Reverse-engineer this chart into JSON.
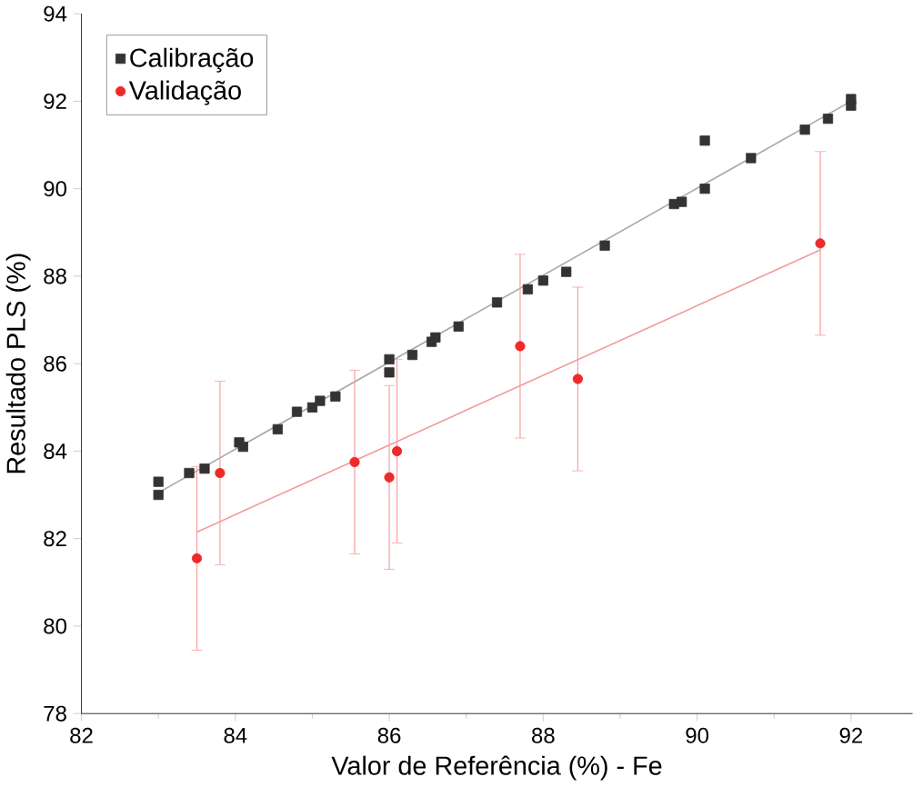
{
  "chart_data": {
    "type": "scatter",
    "xlabel": "Valor de Referência (%) - Fe",
    "ylabel": "Resultado PLS (%)",
    "xlim": [
      82,
      92.8
    ],
    "ylim": [
      78,
      94
    ],
    "xticks": [
      82,
      84,
      86,
      88,
      90,
      92
    ],
    "yticks": [
      78,
      80,
      82,
      84,
      86,
      88,
      90,
      92,
      94
    ],
    "grid": false,
    "legend": "top left",
    "series": [
      {
        "name": "Calibração",
        "color": "#333333",
        "marker": "square",
        "x": [
          83.0,
          83.0,
          83.4,
          83.6,
          84.05,
          84.1,
          84.55,
          84.8,
          85.0,
          85.1,
          85.3,
          86.0,
          86.0,
          86.3,
          86.55,
          86.6,
          86.9,
          87.4,
          87.8,
          88.0,
          88.3,
          88.8,
          89.7,
          89.8,
          90.1,
          90.1,
          90.7,
          91.4,
          91.7,
          92.0,
          92.0
        ],
        "values": [
          83.0,
          83.3,
          83.5,
          83.6,
          84.2,
          84.1,
          84.5,
          84.9,
          85.0,
          85.15,
          85.25,
          85.8,
          86.1,
          86.2,
          86.5,
          86.6,
          86.85,
          87.4,
          87.7,
          87.9,
          88.1,
          88.7,
          89.65,
          89.7,
          90.0,
          91.1,
          90.7,
          91.35,
          91.6,
          91.9,
          92.05
        ]
      },
      {
        "name": "Validação",
        "color": "#ee2a2a",
        "marker": "circle",
        "x": [
          83.5,
          83.8,
          85.55,
          86.0,
          86.1,
          87.7,
          88.45,
          91.6
        ],
        "values": [
          81.55,
          83.5,
          83.75,
          83.4,
          84.0,
          86.4,
          85.65,
          88.75
        ],
        "errors": [
          2.1,
          2.1,
          2.1,
          2.1,
          2.1,
          2.1,
          2.1,
          2.1
        ]
      },
      {
        "type": "line",
        "color": "#a8a8a8",
        "marker": "none",
        "x": [
          83.0,
          92.0
        ],
        "values": [
          83.05,
          92.0
        ]
      },
      {
        "type": "line",
        "color": "#f29a9a",
        "marker": "none",
        "x": [
          83.5,
          91.6
        ],
        "values": [
          82.15,
          88.6
        ]
      }
    ]
  }
}
